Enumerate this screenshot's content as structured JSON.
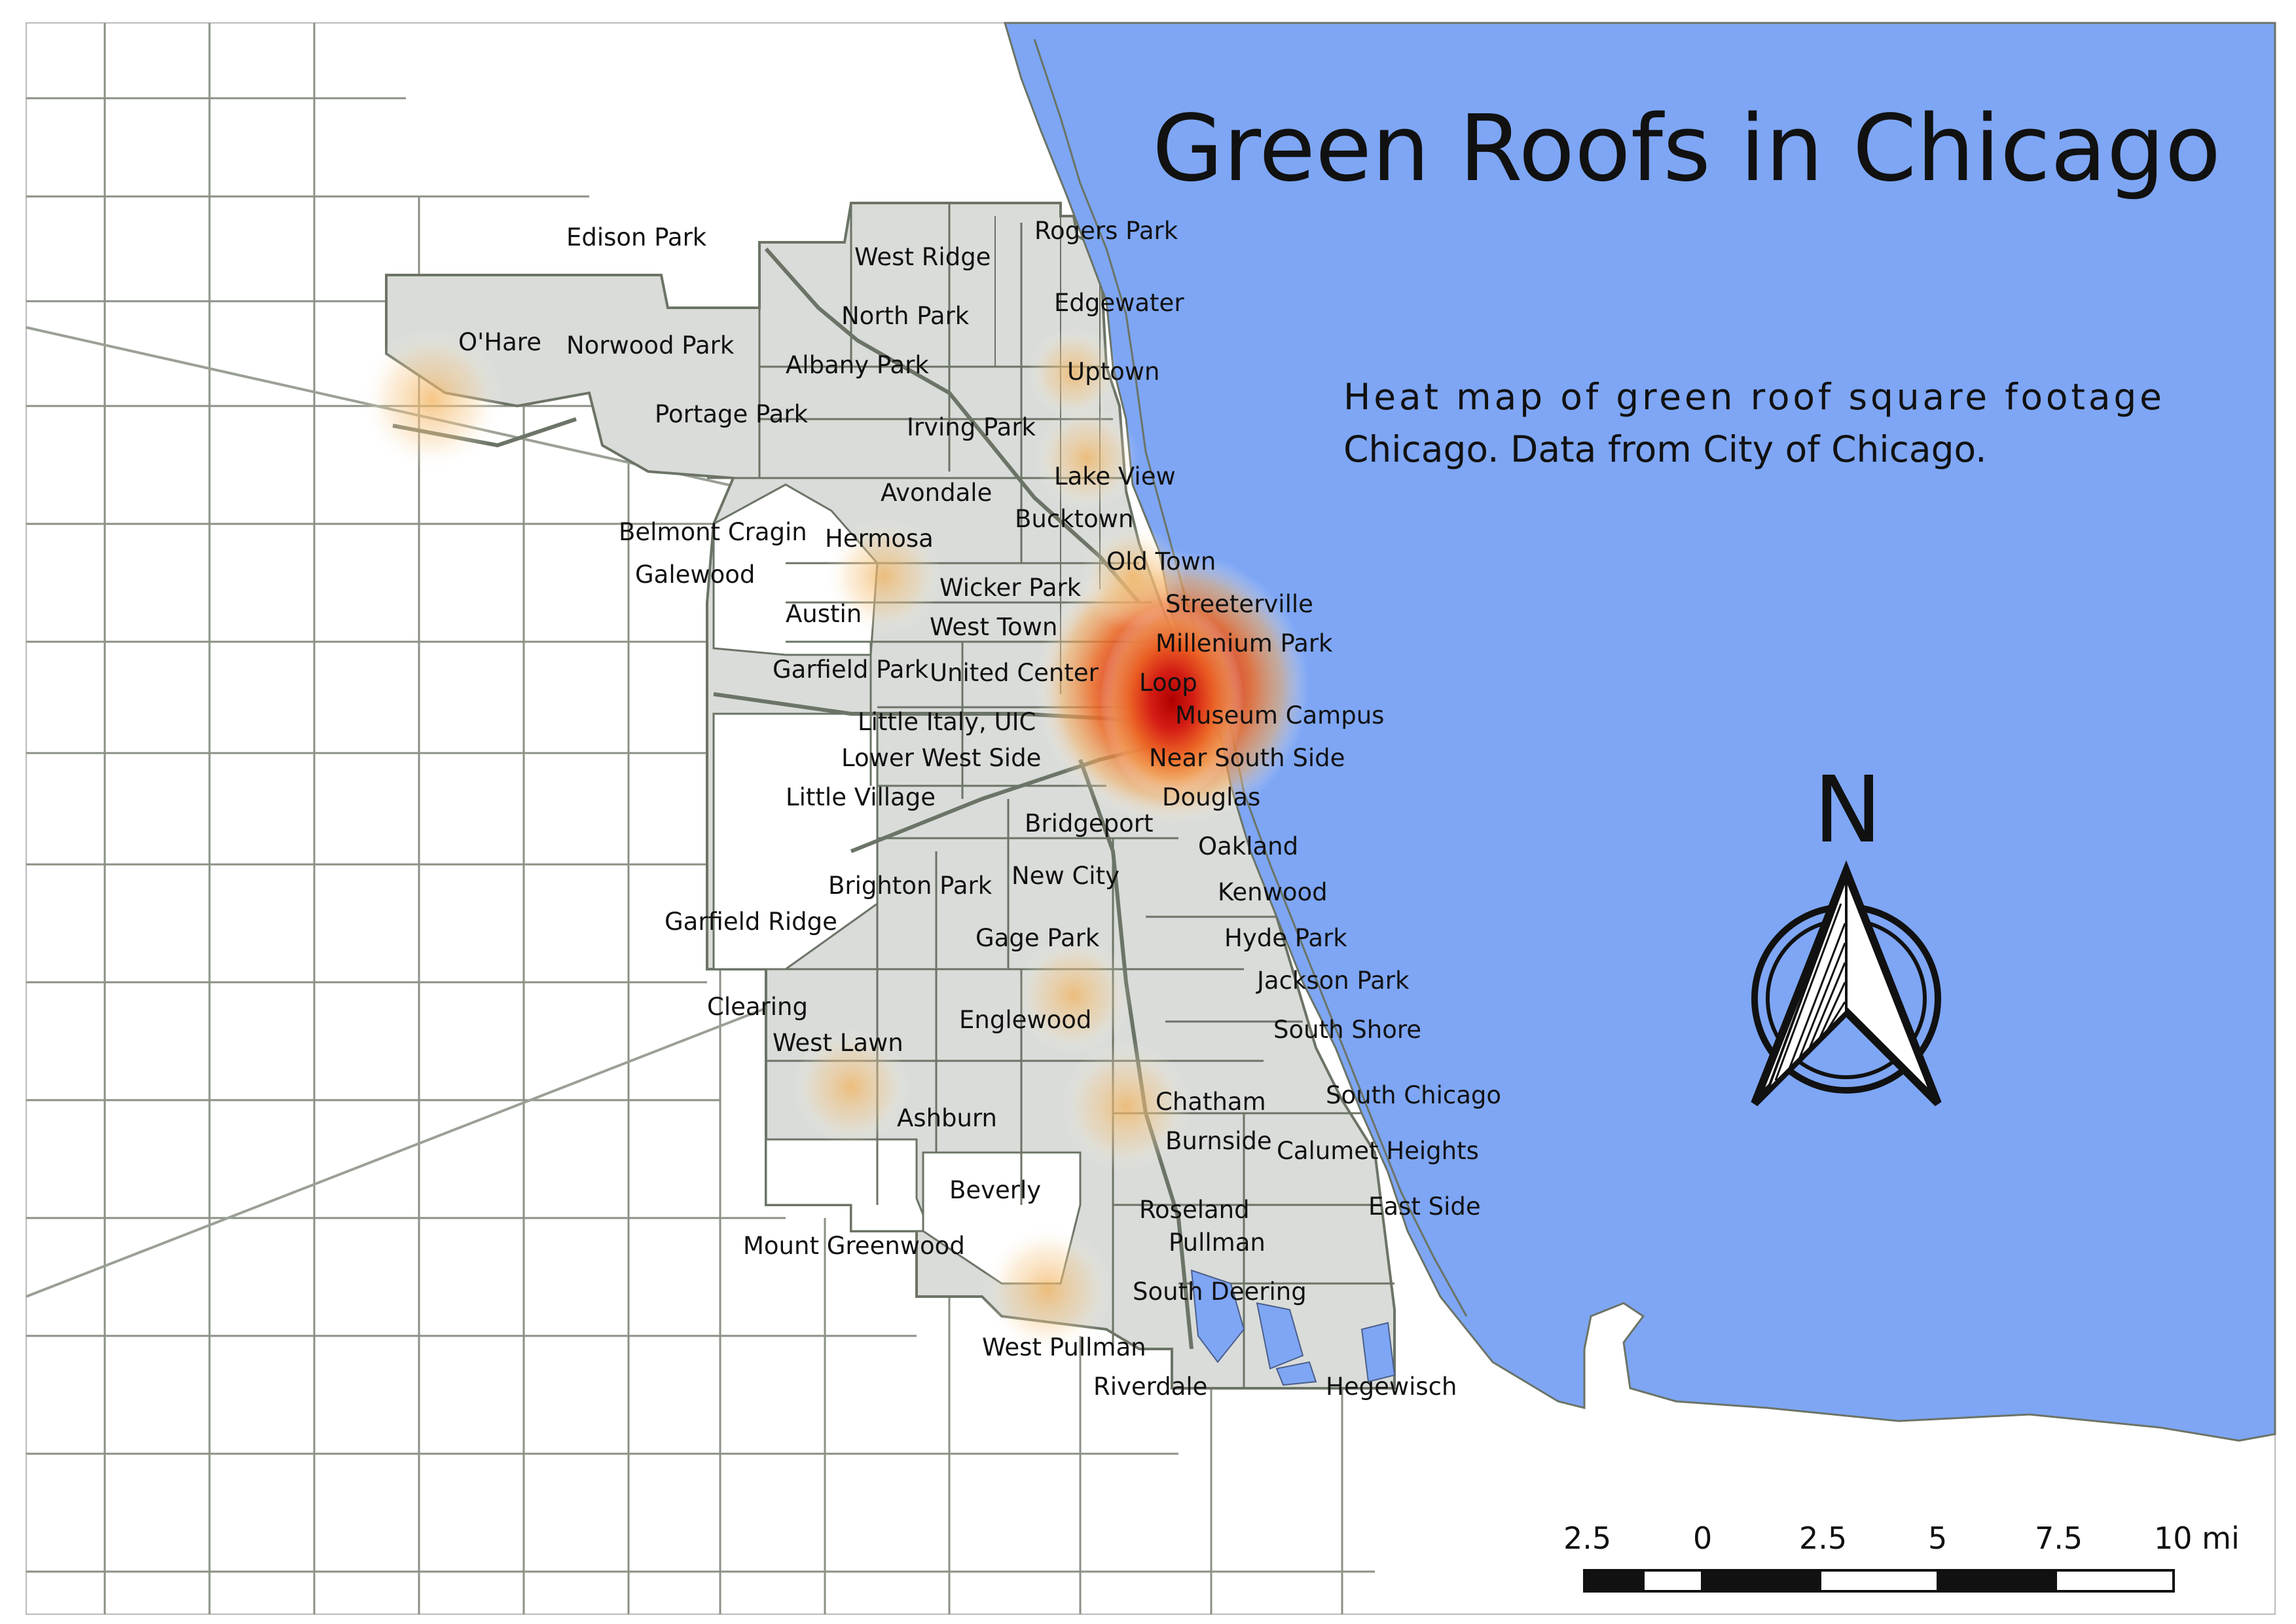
{
  "title": "Green Roofs in Chicago",
  "subtitle": {
    "line1": "Heat map of green roof square footage",
    "line2": "Chicago. Data from City of Chicago."
  },
  "north_arrow": {
    "letter": "N",
    "icon": "north-arrow-icon"
  },
  "scale_bar": {
    "labels": [
      "2.5",
      "0",
      "2.5",
      "5",
      "7.5",
      "10 mi"
    ]
  },
  "colors": {
    "lake": "#7ea6f4",
    "city_fill": "#d9dcd9",
    "boundaries": "#6b7466",
    "heat_low": "#f4c27a",
    "heat_mid": "#ec7a2a",
    "heat_high": "#c41010"
  },
  "neighborhoods": [
    "Edison Park",
    "Rogers Park",
    "West Ridge",
    "Edgewater",
    "North Park",
    "O'Hare",
    "Norwood Park",
    "Albany Park",
    "Uptown",
    "Portage Park",
    "Irving Park",
    "Lake View",
    "Avondale",
    "Bucktown",
    "Belmont Cragin",
    "Hermosa",
    "Old Town",
    "Galewood",
    "Wicker Park",
    "Streeterville",
    "Austin",
    "West Town",
    "Millenium Park",
    "Garfield Park",
    "United Center",
    "Loop",
    "Museum Campus",
    "Little Italy, UIC",
    "Lower West Side",
    "Near South Side",
    "Little Village",
    "Douglas",
    "Bridgeport",
    "Oakland",
    "Brighton Park",
    "New City",
    "Kenwood",
    "Garfield Ridge",
    "Gage Park",
    "Hyde Park",
    "Jackson Park",
    "Clearing",
    "Englewood",
    "South Shore",
    "West Lawn",
    "Chatham",
    "South Chicago",
    "Ashburn",
    "Burnside",
    "Calumet Heights",
    "Beverly",
    "East Side",
    "Roseland",
    "Pullman",
    "Mount Greenwood",
    "South Deering",
    "West Pullman",
    "Riverdale",
    "Hegewisch"
  ]
}
